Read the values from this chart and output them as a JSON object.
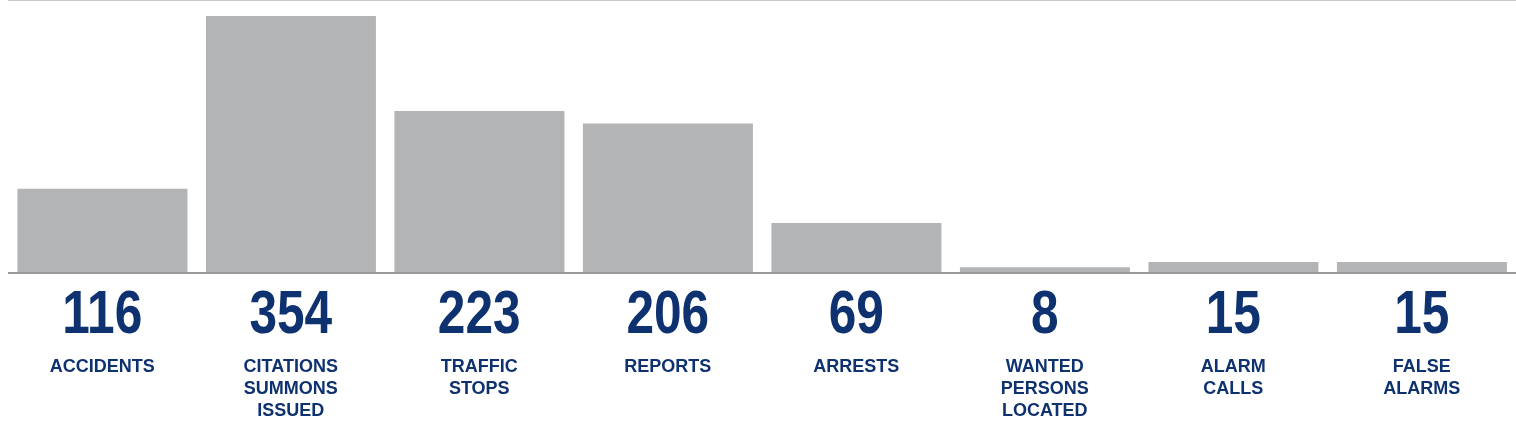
{
  "chart_data": {
    "type": "bar",
    "categories": [
      "ACCIDENTS",
      "CITATIONS SUMMONS ISSUED",
      "TRAFFIC STOPS",
      "REPORTS",
      "ARRESTS",
      "WANTED PERSONS LOCATED",
      "ALARM CALLS",
      "FALSE ALARMS"
    ],
    "values": [
      116,
      354,
      223,
      206,
      69,
      8,
      15,
      15
    ],
    "color": "#b3b4b6",
    "ylim": [
      0,
      376
    ],
    "grid": "y",
    "tick_labels": "x",
    "data_labels": true
  }
}
